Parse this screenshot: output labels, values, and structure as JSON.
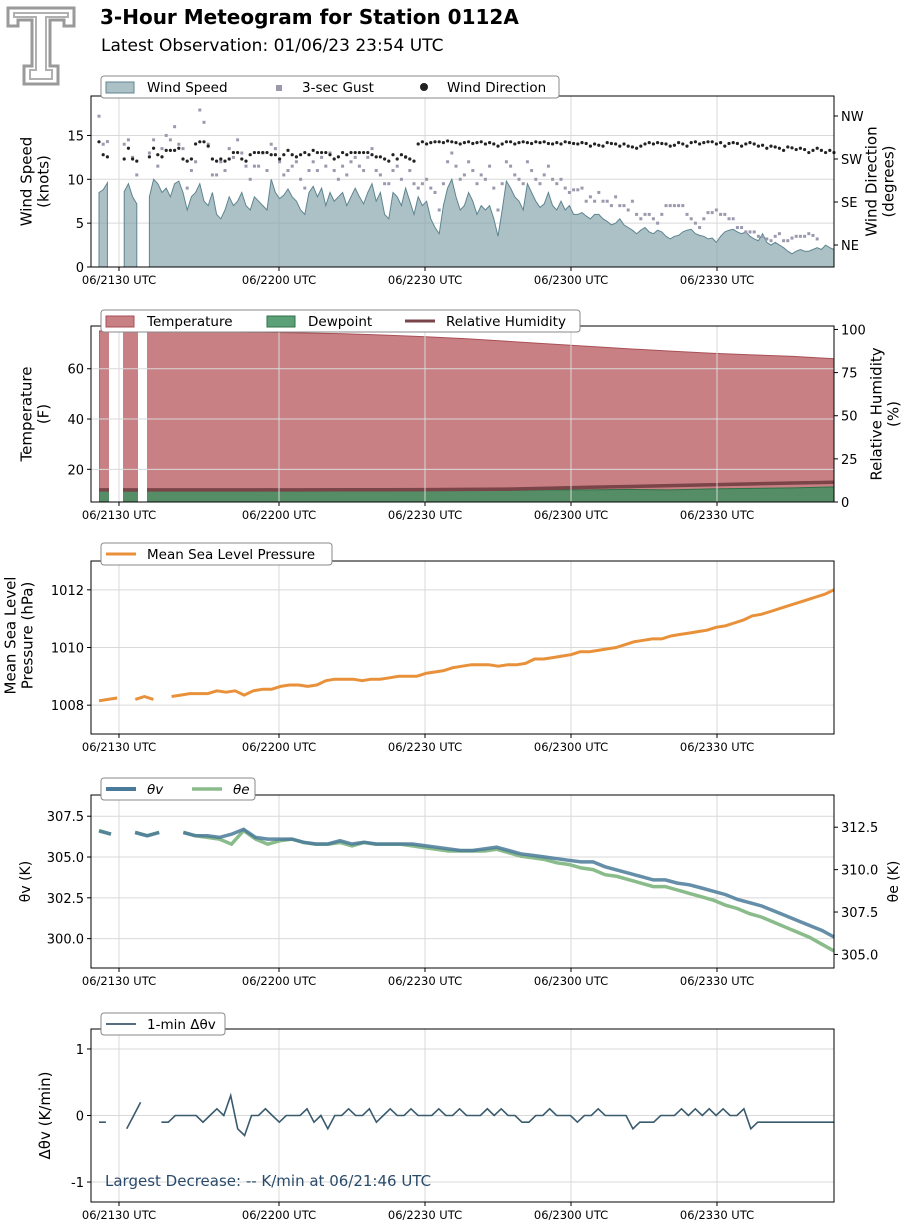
{
  "header": {
    "title": "3-Hour Meteogram for Station 0112A",
    "subtitle": "Latest Observation: 01/06/23 23:54 UTC"
  },
  "colors": {
    "wind_speed": "#7f9fa8",
    "gust": "#9a9aae",
    "wind_dir": "#222222",
    "temperature": "#bf6a6e",
    "dewpoint": "#3f8f60",
    "rh": "#7a4448",
    "pressure": "#e8913a",
    "theta_v": "#4a7a99",
    "theta_e": "#8abb8a",
    "dtheta": "#3a5a6e",
    "annotation": "#2a4a6a"
  },
  "x_tick_labels": [
    "06/2130 UTC",
    "06/2200 UTC",
    "06/2230 UTC",
    "06/2300 UTC",
    "06/2330 UTC"
  ],
  "chart_data": [
    {
      "type": "area",
      "legend": [
        "Wind Speed",
        "3-sec Gust",
        "Wind Direction"
      ],
      "ylabel": "Wind Speed\n(knots)",
      "y2label": "Wind Direction\n(degrees)",
      "ylim": [
        0,
        19.5
      ],
      "yticks": [
        0,
        5,
        10,
        15
      ],
      "y2ticks": [
        "NE",
        "SE",
        "SW",
        "NW"
      ],
      "grid": true,
      "legend_position": "top-left",
      "series": [
        {
          "name": "Wind Speed",
          "knots": [
            8.5,
            8.8,
            9.6,
            null,
            null,
            null,
            8.6,
            9.5,
            8.0,
            7.2,
            null,
            null,
            8.0,
            10.0,
            9.5,
            8.5,
            9.0,
            8.0,
            9.5,
            9.8,
            8.5,
            6.5,
            8.0,
            8.5,
            9.5,
            7.5,
            7.0,
            8.5,
            6.0,
            5.5,
            6.5,
            8.0,
            7.0,
            7.5,
            8.5,
            7.0,
            6.5,
            8.0,
            7.5,
            7.0,
            6.5,
            10.0,
            8.5,
            7.8,
            8.2,
            8.9,
            8.0,
            7.5,
            6.5,
            6.0,
            8.5,
            9.2,
            8.0,
            9.0,
            7.0,
            8.5,
            7.5,
            8.0,
            8.5,
            7.0,
            8.0,
            9.0,
            8.0,
            7.2,
            8.5,
            9.5,
            7.5,
            8.5,
            6.0,
            5.5,
            8.5,
            8.0,
            7.0,
            9.0,
            7.5,
            6.0,
            8.0,
            7.0,
            7.5,
            5.5,
            4.5,
            3.8,
            7.0,
            9.0,
            10.0,
            8.0,
            6.5,
            7.0,
            8.5,
            7.5,
            6.0,
            7.0,
            6.5,
            7.0,
            5.5,
            3.5,
            6.5,
            9.8,
            9.0,
            8.0,
            7.5,
            6.5,
            9.5,
            8.5,
            7.5,
            6.8,
            7.2,
            8.5,
            7.0,
            6.5,
            7.5,
            6.5,
            7.0,
            6.0,
            6.0,
            6.2,
            5.8,
            5.5,
            6.0,
            6.0,
            5.5,
            5.2,
            4.8,
            5.0,
            5.5,
            4.8,
            4.5,
            4.2,
            3.8,
            4.2,
            4.5,
            4.0,
            3.8,
            4.2,
            4.0,
            3.5,
            3.2,
            3.5,
            3.6,
            4.0,
            4.2,
            4.3,
            3.8,
            3.6,
            3.5,
            3.2,
            3.3,
            2.8,
            3.5,
            4.0,
            4.2,
            4.3,
            4.0,
            3.8,
            4.0,
            3.5,
            3.2,
            3.0,
            3.8,
            2.8,
            2.5,
            2.8,
            2.5,
            2.2,
            1.8,
            1.5,
            1.8,
            2.0,
            1.8,
            1.8,
            2.0,
            2.2,
            2.0,
            2.5,
            2.2,
            2.0
          ]
        },
        {
          "name": "3-sec Gust",
          "knots": [
            17.2,
            14.0,
            14.3,
            null,
            null,
            null,
            14.0,
            14.5,
            12.5,
            10.5,
            null,
            null,
            13.0,
            14.5,
            11.5,
            13.5,
            15.0,
            14.5,
            16.0,
            14.0,
            13.5,
            9.0,
            11.0,
            12.0,
            17.9,
            16.5,
            14.0,
            10.5,
            10.5,
            12.0,
            11.0,
            13.5,
            12.5,
            14.5,
            13.0,
            11.5,
            10.0,
            11.5,
            11.5,
            13.0,
            11.0,
            14.0,
            13.5,
            12.0,
            10.5,
            11.0,
            11.5,
            12.0,
            10.0,
            9.0,
            11.0,
            12.0,
            11.0,
            12.5,
            11.5,
            13.0,
            11.0,
            10.0,
            11.5,
            10.5,
            12.0,
            12.5,
            11.5,
            11.0,
            12.5,
            13.5,
            11.0,
            10.5,
            9.5,
            9.5,
            11.0,
            11.5,
            10.0,
            12.5,
            11.0,
            9.5,
            9.0,
            9.5,
            10.0,
            9.0,
            8.5,
            6.5,
            9.5,
            12.0,
            13.0,
            11.5,
            10.0,
            10.5,
            12.0,
            11.0,
            9.5,
            10.5,
            10.0,
            11.5,
            9.0,
            6.5,
            9.5,
            12.0,
            11.5,
            10.5,
            10.0,
            9.5,
            12.0,
            11.0,
            10.0,
            9.5,
            10.5,
            11.5,
            10.0,
            9.5,
            10.0,
            9.0,
            8.5,
            8.8,
            8.8,
            9.0,
            7.5,
            8.0,
            7.5,
            8.5,
            7.5,
            7.5,
            7.0,
            8.0,
            7.0,
            7.0,
            6.5,
            7.5,
            6.0,
            5.5,
            6.0,
            6.0,
            5.5,
            5.0,
            6.0,
            7.0,
            7.0,
            7.0,
            7.0,
            7.0,
            6.0,
            5.5,
            5.0,
            4.5,
            5.5,
            6.2,
            6.2,
            6.5,
            6.0,
            6.0,
            5.5,
            5.5,
            4.5,
            4.5,
            4.0,
            4.0,
            4.0,
            3.5,
            3.5,
            3.2,
            3.0,
            3.5,
            3.8,
            3.0,
            3.0,
            3.3,
            3.5,
            3.5,
            3.5,
            3.8,
            3.6,
            3.2
          ]
        },
        {
          "name": "Wind Direction",
          "position_1_NE_4_NW": [
            3.4,
            3.1,
            3.05,
            null,
            null,
            null,
            3.0,
            3.25,
            3.0,
            2.95,
            null,
            null,
            3.05,
            3.25,
            3.1,
            3.05,
            3.2,
            3.2,
            3.2,
            3.25,
            3.0,
            2.95,
            3.0,
            3.35,
            3.4,
            3.4,
            3.3,
            3.0,
            2.95,
            3.0,
            2.95,
            3.0,
            3.15,
            3.15,
            3.0,
            2.95,
            3.1,
            3.15,
            3.15,
            3.15,
            3.15,
            3.1,
            3.1,
            3.0,
            3.1,
            3.2,
            3.1,
            3.05,
            3.1,
            3.15,
            3.1,
            3.2,
            3.15,
            3.15,
            3.15,
            3.1,
            3.0,
            3.05,
            3.15,
            3.1,
            3.15,
            3.15,
            3.15,
            3.15,
            3.15,
            3.1,
            3.05,
            3.05,
            3.0,
            2.95,
            3.1,
            3.0,
            3.1,
            3.05,
            3.0,
            2.95,
            3.35,
            3.4,
            3.35,
            3.38,
            3.4,
            3.4,
            3.38,
            3.42,
            3.4,
            3.38,
            3.35,
            3.38,
            3.4,
            3.36,
            3.38,
            3.4,
            3.35,
            3.38,
            3.35,
            3.3,
            3.35,
            3.4,
            3.4,
            3.35,
            3.38,
            3.4,
            3.38,
            3.36,
            3.4,
            3.38,
            3.4,
            3.36,
            3.35,
            3.38,
            3.35,
            3.4,
            3.38,
            3.36,
            3.35,
            3.38,
            3.36,
            3.3,
            3.35,
            3.32,
            3.3,
            3.38,
            3.36,
            3.35,
            3.3,
            3.35,
            3.3,
            3.28,
            3.25,
            3.3,
            3.35,
            3.38,
            3.35,
            3.38,
            3.36,
            3.35,
            3.3,
            3.32,
            3.38,
            3.35,
            3.3,
            3.38,
            3.4,
            3.35,
            3.38,
            3.4,
            3.4,
            3.35,
            3.38,
            3.3,
            3.36,
            3.38,
            3.36,
            3.3,
            3.35,
            3.38,
            3.35,
            3.3,
            3.32,
            3.25,
            3.3,
            3.28,
            3.25,
            3.2,
            3.28,
            3.26,
            3.22,
            3.25,
            3.22,
            3.15,
            3.2,
            3.25,
            3.2,
            3.15,
            3.2,
            3.15
          ]
        }
      ]
    },
    {
      "type": "area",
      "legend": [
        "Temperature",
        "Dewpoint",
        "Relative Humidity"
      ],
      "ylabel": "Temperature\n(F)",
      "y2label": "Relative Humidity\n(%)",
      "ylim": [
        7,
        77
      ],
      "yticks": [
        20,
        40,
        60
      ],
      "y2lim": [
        0,
        102
      ],
      "y2ticks": [
        0,
        25,
        50,
        75,
        100
      ],
      "grid": true,
      "legend_position": "top-left",
      "series": [
        {
          "name": "Temperature",
          "F": [
            75.0,
            74.9,
            74.8,
            74.7,
            74.5,
            74.2,
            73.9,
            73.4,
            72.7,
            71.9,
            70.9,
            69.9,
            68.9,
            67.9,
            67.0,
            66.2,
            65.5,
            64.9,
            64.0
          ]
        },
        {
          "name": "Dewpoint",
          "F": [
            11.6,
            11.2,
            11.8,
            11.5,
            12.2,
            12.1,
            12.1,
            11.9,
            12.0,
            12.1,
            11.6,
            11.8,
            11.8,
            12.0,
            11.8,
            12.2,
            12.4,
            12.6,
            13.0
          ]
        },
        {
          "name": "Relative Humidity",
          "percent": [
            7.0,
            7.0,
            7.0,
            7.0,
            7.0,
            7.0,
            7.1,
            7.1,
            7.2,
            7.3,
            7.5,
            8.0,
            8.5,
            9.0,
            9.5,
            10.0,
            10.5,
            11.0,
            11.5
          ]
        }
      ]
    },
    {
      "type": "line",
      "legend": [
        "Mean Sea Level Pressure"
      ],
      "ylabel": "Mean Sea Level\nPressure (hPa)",
      "ylim": [
        1007.0,
        1013.0
      ],
      "yticks": [
        1008,
        1010,
        1012
      ],
      "grid": true,
      "legend_position": "top-left",
      "series": [
        {
          "name": "Mean Sea Level Pressure",
          "hPa": [
            1008.15,
            1008.2,
            1008.25,
            null,
            1008.2,
            1008.3,
            1008.2,
            null,
            1008.3,
            1008.35,
            1008.4,
            1008.4,
            1008.4,
            1008.5,
            1008.45,
            1008.5,
            1008.35,
            1008.5,
            1008.55,
            1008.55,
            1008.65,
            1008.7,
            1008.7,
            1008.65,
            1008.7,
            1008.85,
            1008.9,
            1008.9,
            1008.9,
            1008.85,
            1008.9,
            1008.9,
            1008.95,
            1009.0,
            1009.0,
            1009.0,
            1009.1,
            1009.15,
            1009.2,
            1009.3,
            1009.35,
            1009.4,
            1009.4,
            1009.4,
            1009.35,
            1009.4,
            1009.4,
            1009.45,
            1009.6,
            1009.6,
            1009.65,
            1009.7,
            1009.75,
            1009.85,
            1009.85,
            1009.9,
            1009.95,
            1010.0,
            1010.1,
            1010.2,
            1010.25,
            1010.3,
            1010.3,
            1010.4,
            1010.45,
            1010.5,
            1010.55,
            1010.6,
            1010.7,
            1010.75,
            1010.85,
            1010.95,
            1011.1,
            1011.15,
            1011.25,
            1011.35,
            1011.45,
            1011.55,
            1011.65,
            1011.75,
            1011.85,
            1012.0
          ]
        }
      ]
    },
    {
      "type": "line",
      "legend": [
        "θv",
        "θe"
      ],
      "ylabel": "θv (K)",
      "y2label": "θe (K)",
      "ylim": [
        298.2,
        308.8
      ],
      "yticks": [
        "300.0",
        "302.5",
        "305.0",
        "307.5"
      ],
      "y2lim": [
        304.2,
        314.4
      ],
      "y2ticks": [
        "305.0",
        "307.5",
        "310.0",
        "312.5"
      ],
      "grid": true,
      "legend_position": "top-left",
      "series": [
        {
          "name": "θv",
          "K": [
            306.6,
            306.4,
            null,
            306.5,
            306.3,
            306.5,
            null,
            306.5,
            306.3,
            306.3,
            306.2,
            306.4,
            306.7,
            306.2,
            306.1,
            306.1,
            306.1,
            305.9,
            305.8,
            305.8,
            306.0,
            305.8,
            305.9,
            305.8,
            305.8,
            305.8,
            305.8,
            305.7,
            305.6,
            305.5,
            305.4,
            305.4,
            305.5,
            305.6,
            305.4,
            305.2,
            305.1,
            305.0,
            304.9,
            304.8,
            304.7,
            304.7,
            304.4,
            304.2,
            304.0,
            303.8,
            303.6,
            303.6,
            303.4,
            303.3,
            303.1,
            302.9,
            302.7,
            302.4,
            302.2,
            302.0,
            301.7,
            301.4,
            301.1,
            300.8,
            300.5,
            300.1
          ]
        },
        {
          "name": "θe",
          "K": [
            312.3,
            312.1,
            null,
            312.2,
            312.0,
            312.2,
            null,
            312.2,
            312.0,
            311.9,
            311.8,
            311.5,
            312.3,
            311.8,
            311.5,
            311.7,
            311.8,
            311.6,
            311.5,
            311.5,
            311.6,
            311.4,
            311.6,
            311.5,
            311.5,
            311.5,
            311.4,
            311.3,
            311.2,
            311.1,
            311.1,
            311.1,
            311.1,
            311.2,
            311.0,
            310.8,
            310.7,
            310.6,
            310.4,
            310.3,
            310.1,
            310.0,
            309.7,
            309.6,
            309.4,
            309.2,
            309.0,
            309.0,
            308.8,
            308.6,
            308.4,
            308.2,
            307.9,
            307.7,
            307.4,
            307.2,
            306.9,
            306.6,
            306.3,
            306.0,
            305.6,
            305.2
          ]
        }
      ]
    },
    {
      "type": "line",
      "legend": [
        "1-min Δθv"
      ],
      "ylabel": "Δθv (K/min)",
      "ylim": [
        -1.3,
        1.3
      ],
      "yticks": [
        -1,
        0,
        1
      ],
      "grid": true,
      "legend_position": "top-left",
      "annotation": "Largest Decrease: -- K/min at 06/21:46 UTC",
      "series": [
        {
          "name": "1-min Δθv",
          "K_per_min": [
            -0.1,
            -0.1,
            null,
            null,
            -0.2,
            0.0,
            0.2,
            null,
            null,
            -0.1,
            -0.1,
            0.0,
            0.0,
            0.0,
            0.0,
            -0.1,
            0.0,
            0.1,
            0.0,
            0.3,
            -0.2,
            -0.3,
            0.0,
            0.0,
            0.1,
            0.0,
            -0.1,
            0.0,
            0.0,
            0.0,
            0.1,
            -0.1,
            0.0,
            -0.2,
            0.0,
            0.0,
            0.1,
            0.0,
            0.0,
            0.1,
            -0.1,
            0.0,
            0.1,
            0.0,
            0.0,
            0.1,
            0.0,
            0.0,
            0.0,
            0.1,
            0.0,
            0.0,
            0.1,
            0.0,
            0.0,
            0.0,
            0.1,
            0.0,
            0.1,
            0.0,
            0.0,
            -0.1,
            -0.1,
            0.0,
            0.0,
            0.1,
            0.0,
            0.0,
            0.0,
            -0.1,
            0.0,
            0.0,
            0.1,
            0.0,
            0.0,
            0.0,
            0.0,
            -0.2,
            -0.1,
            -0.1,
            -0.1,
            0.0,
            0.0,
            0.0,
            0.1,
            0.0,
            0.1,
            0.0,
            0.1,
            0.0,
            0.1,
            0.0,
            0.0,
            0.1,
            -0.2,
            -0.1,
            -0.1,
            -0.1,
            -0.1,
            -0.1,
            -0.1,
            -0.1,
            -0.1,
            -0.1,
            -0.1,
            -0.1,
            -0.1
          ]
        }
      ]
    }
  ]
}
